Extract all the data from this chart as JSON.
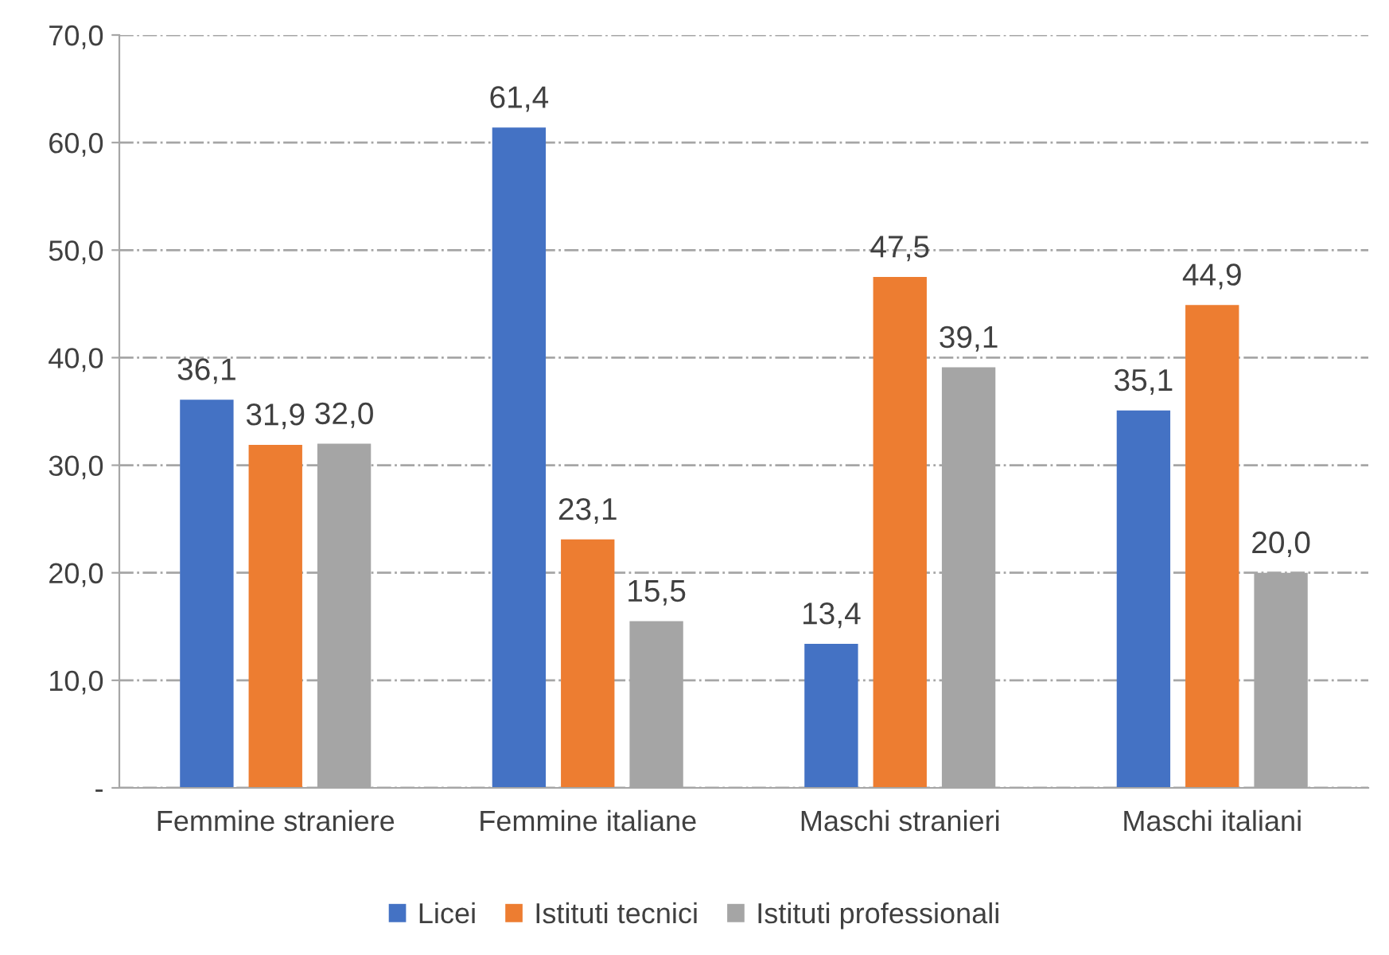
{
  "chart_data": {
    "type": "bar",
    "categories": [
      "Femmine straniere",
      "Femmine italiane",
      "Maschi stranieri",
      "Maschi italiani"
    ],
    "series": [
      {
        "name": "Licei",
        "color": "#4472c4",
        "values": [
          36.1,
          61.4,
          13.4,
          35.1
        ],
        "value_labels": [
          "36,1",
          "61,4",
          "13,4",
          "35,1"
        ]
      },
      {
        "name": "Istituti tecnici",
        "color": "#ed7d31",
        "values": [
          31.9,
          23.1,
          47.5,
          44.9
        ],
        "value_labels": [
          "31,9",
          "23,1",
          "47,5",
          "44,9"
        ]
      },
      {
        "name": "Istituti professionali",
        "color": "#a5a5a5",
        "values": [
          32.0,
          15.5,
          39.1,
          20.0
        ],
        "value_labels": [
          "32,0",
          "15,5",
          "39,1",
          "20,0"
        ]
      }
    ],
    "ylim": [
      0,
      70
    ],
    "yticks": [
      {
        "value": 0,
        "label": "-"
      },
      {
        "value": 10,
        "label": "10,0"
      },
      {
        "value": 20,
        "label": "20,0"
      },
      {
        "value": 30,
        "label": "30,0"
      },
      {
        "value": 40,
        "label": "40,0"
      },
      {
        "value": 50,
        "label": "50,0"
      },
      {
        "value": 60,
        "label": "60,0"
      },
      {
        "value": 70,
        "label": "70,0"
      }
    ],
    "grid": "y",
    "legend": "bottom"
  }
}
